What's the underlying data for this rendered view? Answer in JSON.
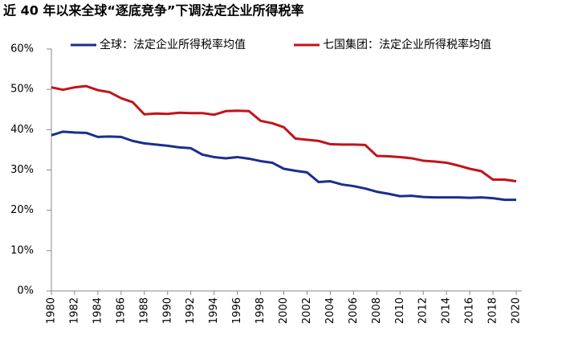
{
  "chart_data": {
    "type": "line",
    "title": "近 40 年以来全球“逐底竞争”下调法定企业所得税率",
    "x": [
      1980,
      1981,
      1982,
      1983,
      1984,
      1985,
      1986,
      1987,
      1988,
      1989,
      1990,
      1991,
      1992,
      1993,
      1994,
      1995,
      1996,
      1997,
      1998,
      1999,
      2000,
      2001,
      2002,
      2003,
      2004,
      2005,
      2006,
      2007,
      2008,
      2009,
      2010,
      2011,
      2012,
      2013,
      2014,
      2015,
      2016,
      2017,
      2018,
      2019,
      2020
    ],
    "series": [
      {
        "name": "全球：法定企业所得税率均值",
        "color": "#1a2f8a",
        "values": [
          38.6,
          39.5,
          39.3,
          39.2,
          38.2,
          38.3,
          38.2,
          37.2,
          36.6,
          36.3,
          36.0,
          35.6,
          35.4,
          33.8,
          33.2,
          32.9,
          33.2,
          32.8,
          32.2,
          31.8,
          30.3,
          29.8,
          29.4,
          27.0,
          27.2,
          26.4,
          26.0,
          25.4,
          24.6,
          24.1,
          23.5,
          23.6,
          23.3,
          23.2,
          23.2,
          23.2,
          23.1,
          23.2,
          23.0,
          22.6,
          22.6
        ]
      },
      {
        "name": "七国集团：法定企业所得税率均值",
        "color": "#c0141b",
        "values": [
          50.5,
          49.9,
          50.5,
          50.8,
          49.8,
          49.3,
          47.8,
          46.8,
          43.8,
          44.0,
          43.9,
          44.2,
          44.1,
          44.1,
          43.7,
          44.6,
          44.7,
          44.6,
          42.2,
          41.6,
          40.6,
          37.8,
          37.5,
          37.2,
          36.4,
          36.3,
          36.3,
          36.2,
          33.5,
          33.4,
          33.2,
          32.9,
          32.3,
          32.1,
          31.8,
          31.1,
          30.3,
          29.7,
          27.6,
          27.6,
          27.2
        ]
      }
    ],
    "xlim": [
      1980,
      2020
    ],
    "xticks": [
      1980,
      1982,
      1984,
      1986,
      1988,
      1990,
      1992,
      1994,
      1996,
      1998,
      2000,
      2002,
      2004,
      2006,
      2008,
      2010,
      2012,
      2014,
      2016,
      2018,
      2020
    ],
    "ylim": [
      0,
      60
    ],
    "yticks": [
      {
        "value": 0,
        "label": "0%"
      },
      {
        "value": 10,
        "label": "10%"
      },
      {
        "value": 20,
        "label": "20%"
      },
      {
        "value": 30,
        "label": "30%"
      },
      {
        "value": 40,
        "label": "40%"
      },
      {
        "value": 50,
        "label": "50%"
      },
      {
        "value": 60,
        "label": "60%"
      }
    ],
    "grid": false
  }
}
